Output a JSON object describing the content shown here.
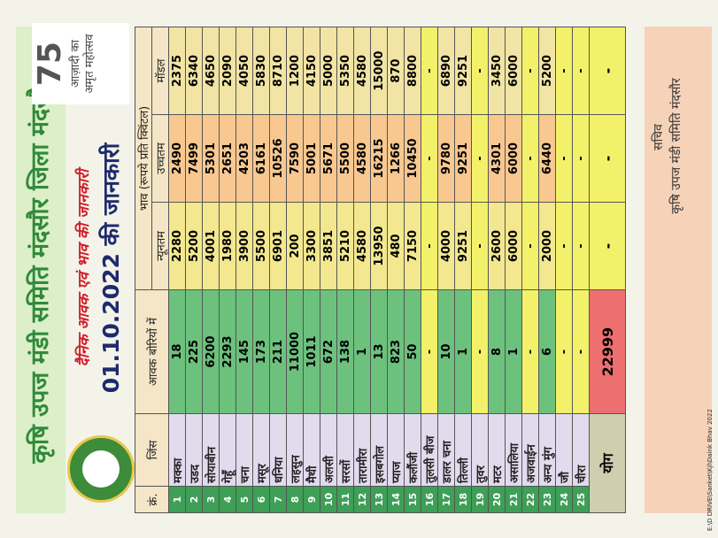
{
  "header": {
    "title": "कृषि उपज मंडी समिति मंदसौर जिला मंदसौर",
    "subtitle": "दैनिक आवक एवं भाव की जानकारी",
    "date_line": "01.10.2022 की जानकारी"
  },
  "logo": {
    "number": "75",
    "line1": "आज़ादी का",
    "line2": "अमृत महोत्सव"
  },
  "table": {
    "columns": [
      "क्रं.",
      "जिंस",
      "आवक बोरियों में"
    ],
    "price_header": "भाव (रूपये प्रति क्विंटल)",
    "price_columns": [
      "न्यूनतम",
      "उच्चतम",
      "मॉडल"
    ],
    "rows": [
      [
        1,
        "मक्का",
        18,
        2280,
        2490,
        2375
      ],
      [
        2,
        "उडद",
        225,
        5200,
        7499,
        6340
      ],
      [
        3,
        "सोयाबीन",
        6200,
        4001,
        5301,
        4650
      ],
      [
        4,
        "गेहूँ",
        2293,
        1980,
        2651,
        2090
      ],
      [
        5,
        "चना",
        145,
        3900,
        4203,
        4050
      ],
      [
        6,
        "मसूर",
        173,
        5500,
        6161,
        5830
      ],
      [
        7,
        "धनिया",
        211,
        6901,
        10526,
        8710
      ],
      [
        8,
        "लहसुन",
        11000,
        200,
        7590,
        1200
      ],
      [
        9,
        "मैथी",
        1011,
        3300,
        5001,
        4150
      ],
      [
        10,
        "अलसी",
        672,
        3851,
        5671,
        5000
      ],
      [
        11,
        "सरसों",
        138,
        5210,
        5500,
        5350
      ],
      [
        12,
        "तारामीरा",
        1,
        4580,
        4580,
        4580
      ],
      [
        13,
        "इसबगोल",
        13,
        13950,
        16215,
        15000
      ],
      [
        14,
        "प्याज",
        823,
        480,
        1266,
        870
      ],
      [
        15,
        "कलौंजी",
        50,
        7150,
        10450,
        8800
      ],
      [
        16,
        "तुलसी बीज",
        "-",
        "-",
        "-",
        "-"
      ],
      [
        17,
        "डालर चना",
        10,
        4000,
        9780,
        6890
      ],
      [
        18,
        "तिल्ली",
        1,
        9251,
        9251,
        9251
      ],
      [
        19,
        "तुवर",
        "-",
        "-",
        "-",
        "-"
      ],
      [
        20,
        "मटर",
        8,
        2600,
        4301,
        3450
      ],
      [
        21,
        "असालिया",
        1,
        6000,
        6000,
        6000
      ],
      [
        22,
        "अजवाईन",
        "-",
        "-",
        "-",
        "-"
      ],
      [
        23,
        "अन्य मुंग",
        6,
        2000,
        6440,
        5200
      ],
      [
        24,
        "जौ",
        "-",
        "-",
        "-",
        "-"
      ],
      [
        25,
        "चीरा",
        "-",
        "-",
        "-",
        "-"
      ]
    ],
    "total": [
      "योग",
      22999,
      "-",
      "-",
      "-"
    ]
  },
  "footer": {
    "designation": "सचिव",
    "office": "कृषि उपज मंडी समिति मंदसौर"
  },
  "side_note": "E:\\D DRIVE\\Sanket\\Kjl\\Daink Bhav 2022"
}
